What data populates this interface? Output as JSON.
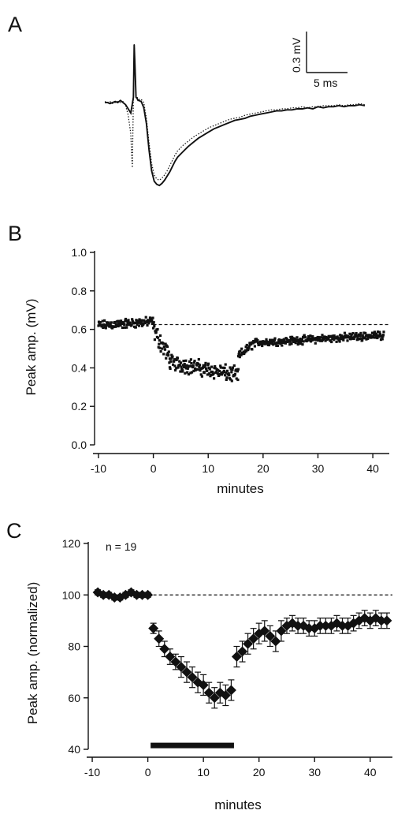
{
  "chart_data": [
    {
      "panel": "A",
      "type": "line",
      "title": "",
      "scale_bar": {
        "y_label": "0.3 mV",
        "x_label": "5 ms",
        "y_value": 0.3,
        "x_value": 5
      },
      "series": [
        {
          "style": "solid",
          "x": [
            0,
            1,
            2,
            3,
            4,
            5,
            6,
            7,
            8,
            9,
            10,
            11,
            11.3,
            11.6,
            12,
            12.4,
            12.8,
            13,
            14,
            15,
            16,
            17,
            18,
            19,
            20,
            21,
            22,
            23,
            24,
            25,
            26,
            27,
            28,
            30,
            32,
            34,
            36,
            38,
            40,
            42,
            44,
            46,
            48,
            50,
            52,
            54,
            56,
            58,
            60,
            62,
            64,
            66,
            68,
            70,
            72,
            74,
            76,
            78,
            80,
            82,
            84,
            86,
            88,
            90,
            92,
            94,
            96,
            98,
            100
          ],
          "y": [
            0.0,
            0.0,
            -0.01,
            0.0,
            0.01,
            0.0,
            0.02,
            0.0,
            -0.02,
            -0.06,
            -0.1,
            0.05,
            0.55,
            0.35,
            0.05,
            0.04,
            0.02,
            0.02,
            0.01,
            -0.05,
            -0.2,
            -0.45,
            -0.65,
            -0.75,
            -0.78,
            -0.79,
            -0.77,
            -0.74,
            -0.7,
            -0.66,
            -0.61,
            -0.56,
            -0.52,
            -0.47,
            -0.42,
            -0.38,
            -0.34,
            -0.31,
            -0.28,
            -0.25,
            -0.23,
            -0.21,
            -0.19,
            -0.17,
            -0.16,
            -0.15,
            -0.13,
            -0.12,
            -0.11,
            -0.1,
            -0.09,
            -0.08,
            -0.08,
            -0.07,
            -0.07,
            -0.06,
            -0.06,
            -0.05,
            -0.06,
            -0.04,
            -0.05,
            -0.04,
            -0.04,
            -0.03,
            -0.04,
            -0.03,
            -0.03,
            -0.02,
            -0.03
          ]
        },
        {
          "style": "dotted",
          "x": [
            0,
            1,
            2,
            3,
            4,
            5,
            6,
            7,
            8,
            9,
            10,
            10.3,
            10.6,
            11,
            11.3,
            11.6,
            12,
            12.4,
            12.8,
            13,
            14,
            15,
            16,
            17,
            18,
            19,
            20,
            21,
            22,
            23,
            24,
            25,
            26,
            27,
            28,
            30,
            32,
            34,
            36,
            38,
            40,
            42,
            44,
            46,
            48,
            50,
            52,
            54,
            56,
            58,
            60,
            62,
            64,
            66,
            68,
            70,
            72,
            74,
            76,
            78,
            80,
            82,
            84,
            86,
            88,
            90,
            92,
            94,
            96,
            98,
            100
          ],
          "y": [
            0.01,
            0.0,
            0.01,
            -0.01,
            0.0,
            0.01,
            0.0,
            0.01,
            -0.03,
            -0.12,
            -0.3,
            -0.5,
            -0.62,
            0.05,
            0.56,
            0.36,
            0.07,
            0.05,
            0.04,
            0.03,
            0.03,
            0.0,
            -0.15,
            -0.38,
            -0.58,
            -0.69,
            -0.73,
            -0.74,
            -0.72,
            -0.69,
            -0.65,
            -0.6,
            -0.55,
            -0.5,
            -0.46,
            -0.41,
            -0.37,
            -0.33,
            -0.3,
            -0.27,
            -0.24,
            -0.22,
            -0.2,
            -0.18,
            -0.16,
            -0.15,
            -0.14,
            -0.12,
            -0.11,
            -0.1,
            -0.09,
            -0.08,
            -0.07,
            -0.07,
            -0.06,
            -0.06,
            -0.05,
            -0.05,
            -0.04,
            -0.05,
            -0.04,
            -0.04,
            -0.03,
            -0.03,
            -0.03,
            -0.02,
            -0.03,
            -0.02,
            -0.02,
            -0.01,
            -0.02
          ]
        }
      ]
    },
    {
      "panel": "B",
      "type": "scatter",
      "title": "",
      "xlabel": "minutes",
      "ylabel": "Peak amp. (mV)",
      "xlim": [
        -11,
        43
      ],
      "ylim": [
        0.0,
        1.0
      ],
      "x_ticks": [
        -10,
        0,
        10,
        20,
        30,
        40
      ],
      "y_ticks": [
        "0.0",
        "0.2",
        "0.4",
        "0.6",
        "0.8",
        "1.0"
      ],
      "reference_line": {
        "y": 0.625,
        "x_from": 0,
        "x_to": 43,
        "style": "dashed"
      },
      "segments": [
        {
          "x_start": -10,
          "x_end": 0,
          "baseline": 0.62,
          "trend_end": 0.64,
          "spread": 0.03
        },
        {
          "x_start": 0,
          "x_end": 3,
          "baseline": 0.6,
          "trend_end": 0.45,
          "spread": 0.06
        },
        {
          "x_start": 3,
          "x_end": 15.5,
          "baseline": 0.43,
          "trend_end": 0.36,
          "spread": 0.05
        },
        {
          "x_start": 15.5,
          "x_end": 18,
          "baseline": 0.46,
          "trend_end": 0.52,
          "spread": 0.03
        },
        {
          "x_start": 18,
          "x_end": 42,
          "baseline": 0.53,
          "trend_end": 0.57,
          "spread": 0.025
        }
      ],
      "points_per_minute": 12
    },
    {
      "panel": "C",
      "type": "scatter",
      "title": "",
      "xlabel": "minutes",
      "ylabel": "Peak amp. (normalized)",
      "xlim": [
        -11,
        44
      ],
      "ylim": [
        40,
        120
      ],
      "x_ticks": [
        -10,
        0,
        10,
        20,
        30,
        40
      ],
      "y_ticks": [
        40,
        60,
        80,
        100,
        120
      ],
      "reference_line": {
        "y": 100,
        "x_from": 0,
        "x_to": 44,
        "style": "dashed"
      },
      "annotation": "n = 19",
      "bar": {
        "x_from": 0.5,
        "x_to": 15.5,
        "y": 41.5
      },
      "x": [
        -9,
        -8,
        -7,
        -6,
        -5,
        -4,
        -3,
        -2,
        -1,
        0,
        1,
        2,
        3,
        4,
        5,
        6,
        7,
        8,
        9,
        10,
        11,
        12,
        13,
        14,
        15,
        16,
        17,
        18,
        19,
        20,
        21,
        22,
        23,
        24,
        25,
        26,
        27,
        28,
        29,
        30,
        31,
        32,
        33,
        34,
        35,
        36,
        37,
        38,
        39,
        40,
        41,
        42,
        43
      ],
      "y": [
        101,
        100,
        100,
        99,
        99,
        100,
        101,
        100,
        100,
        100,
        87,
        83,
        79,
        76,
        74,
        72,
        70,
        68,
        66,
        65,
        62,
        60,
        62,
        61,
        63,
        76,
        78,
        81,
        83,
        85,
        86,
        84,
        82,
        86,
        88,
        89,
        88,
        88,
        87,
        87,
        88,
        88,
        88,
        89,
        88,
        88,
        89,
        90,
        91,
        90,
        91,
        90,
        90
      ],
      "error": [
        1,
        1,
        1,
        1,
        1,
        1,
        1,
        1,
        1,
        1,
        2,
        3,
        3,
        3,
        3,
        4,
        4,
        4,
        4,
        4,
        4,
        4,
        4,
        4,
        4,
        4,
        4,
        4,
        4,
        4,
        4,
        4,
        4,
        4,
        3,
        3,
        3,
        3,
        3,
        3,
        3,
        3,
        3,
        3,
        3,
        3,
        3,
        3,
        3,
        3,
        3,
        3,
        3
      ]
    }
  ],
  "labels": {
    "panel_a": "A",
    "panel_b": "B",
    "panel_c": "C",
    "scale_y": "0.3 mV",
    "scale_x": "5 ms",
    "b_xlabel": "minutes",
    "b_ylabel": "Peak amp. (mV)",
    "c_xlabel": "minutes",
    "c_ylabel": "Peak amp. (normalized)",
    "c_annotation": "n = 19"
  }
}
